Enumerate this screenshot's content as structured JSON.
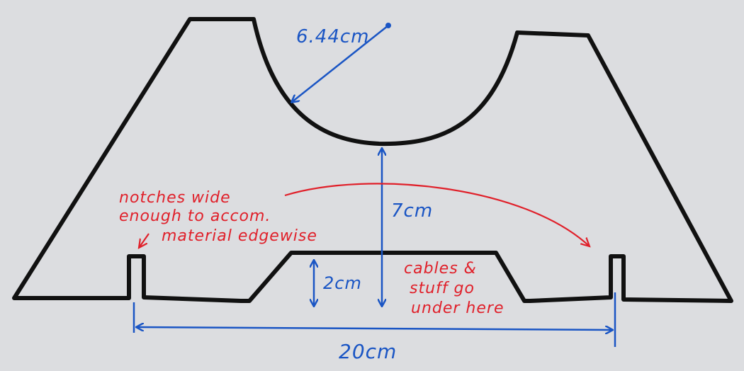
{
  "colors": {
    "paper": "#dcdde0",
    "outline": "#111111",
    "dimension": "#1a55c4",
    "note": "#e0202a"
  },
  "labels": {
    "radius": "6.44cm",
    "height_total": "7cm",
    "height_notch_center": "2cm",
    "width_total": "20cm",
    "notch_note_line1": "notches wide",
    "notch_note_line2": "enough to accom.",
    "notch_note_line3": "material edgewise",
    "cable_note_line1": "cables &",
    "cable_note_line2": "stuff go",
    "cable_note_line3": "under here"
  }
}
